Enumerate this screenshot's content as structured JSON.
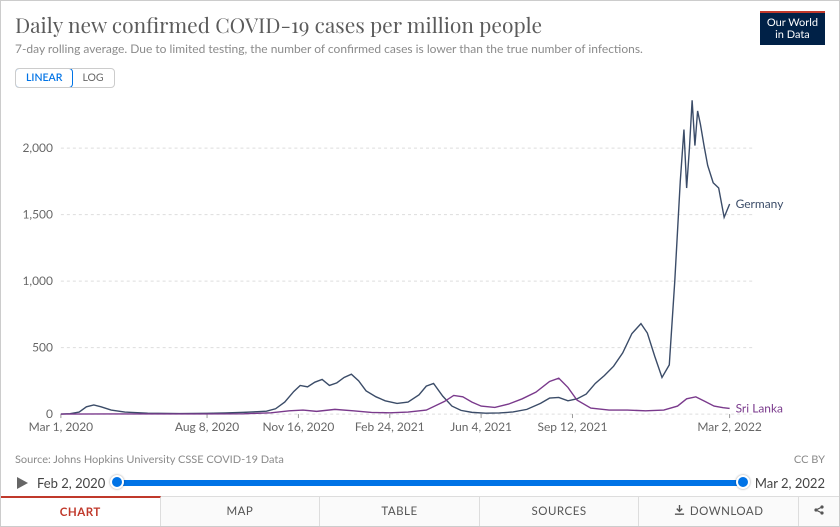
{
  "logo": {
    "line1": "Our World",
    "line2": "in Data",
    "bg": "#002147",
    "accent": "#c0392b"
  },
  "title": "Daily new confirmed COVID-19 cases per million people",
  "subtitle": "7-day rolling average. Due to limited testing, the number of confirmed cases is lower than the true number of infections.",
  "scale": {
    "linear": "LINEAR",
    "log": "LOG",
    "active": "linear",
    "active_color": "#0073e6"
  },
  "chart": {
    "type": "line",
    "background": "#ffffff",
    "grid_color": "#dddddd",
    "axis_fontsize": 12,
    "ylim": [
      0,
      2400
    ],
    "yticks": [
      0,
      500,
      1000,
      1500,
      2000
    ],
    "ytick_labels": [
      "0",
      "500",
      "1,000",
      "1,500",
      "2,000"
    ],
    "xlim": [
      0,
      760
    ],
    "xticks": [
      0,
      160,
      260,
      360,
      460,
      560,
      732
    ],
    "xtick_labels": [
      "Mar 1, 2020",
      "Aug 8, 2020",
      "Nov 16, 2020",
      "Feb 24, 2021",
      "Jun 4, 2021",
      "Sep 12, 2021",
      "Mar 2, 2022"
    ],
    "series": [
      {
        "name": "Germany",
        "label": "Germany",
        "color": "#3b4c68",
        "data": [
          [
            0,
            0
          ],
          [
            10,
            3
          ],
          [
            20,
            15
          ],
          [
            28,
            55
          ],
          [
            36,
            68
          ],
          [
            44,
            55
          ],
          [
            55,
            30
          ],
          [
            70,
            15
          ],
          [
            95,
            7
          ],
          [
            130,
            4
          ],
          [
            160,
            5
          ],
          [
            180,
            8
          ],
          [
            200,
            13
          ],
          [
            215,
            18
          ],
          [
            225,
            22
          ],
          [
            235,
            40
          ],
          [
            245,
            90
          ],
          [
            255,
            170
          ],
          [
            262,
            215
          ],
          [
            270,
            205
          ],
          [
            278,
            240
          ],
          [
            286,
            260
          ],
          [
            294,
            215
          ],
          [
            302,
            235
          ],
          [
            310,
            275
          ],
          [
            318,
            300
          ],
          [
            326,
            250
          ],
          [
            334,
            175
          ],
          [
            345,
            130
          ],
          [
            355,
            100
          ],
          [
            368,
            80
          ],
          [
            380,
            90
          ],
          [
            392,
            145
          ],
          [
            400,
            210
          ],
          [
            408,
            230
          ],
          [
            418,
            135
          ],
          [
            428,
            60
          ],
          [
            438,
            28
          ],
          [
            450,
            13
          ],
          [
            465,
            7
          ],
          [
            480,
            8
          ],
          [
            495,
            16
          ],
          [
            510,
            35
          ],
          [
            525,
            80
          ],
          [
            535,
            120
          ],
          [
            545,
            125
          ],
          [
            555,
            100
          ],
          [
            565,
            115
          ],
          [
            575,
            150
          ],
          [
            585,
            230
          ],
          [
            595,
            290
          ],
          [
            605,
            360
          ],
          [
            615,
            460
          ],
          [
            625,
            605
          ],
          [
            635,
            680
          ],
          [
            642,
            610
          ],
          [
            650,
            435
          ],
          [
            658,
            275
          ],
          [
            666,
            370
          ],
          [
            672,
            1000
          ],
          [
            678,
            1750
          ],
          [
            682,
            2140
          ],
          [
            685,
            1700
          ],
          [
            688,
            2000
          ],
          [
            691,
            2360
          ],
          [
            694,
            2020
          ],
          [
            697,
            2280
          ],
          [
            700,
            2180
          ],
          [
            704,
            2020
          ],
          [
            708,
            1870
          ],
          [
            714,
            1740
          ],
          [
            720,
            1700
          ],
          [
            726,
            1480
          ],
          [
            732,
            1580
          ]
        ]
      },
      {
        "name": "Sri Lanka",
        "label": "Sri Lanka",
        "color": "#7a3a8c",
        "data": [
          [
            0,
            0
          ],
          [
            50,
            1
          ],
          [
            100,
            1
          ],
          [
            150,
            1
          ],
          [
            200,
            2
          ],
          [
            230,
            10
          ],
          [
            250,
            25
          ],
          [
            265,
            30
          ],
          [
            280,
            20
          ],
          [
            300,
            35
          ],
          [
            320,
            25
          ],
          [
            340,
            12
          ],
          [
            360,
            10
          ],
          [
            380,
            15
          ],
          [
            400,
            30
          ],
          [
            420,
            95
          ],
          [
            430,
            140
          ],
          [
            440,
            130
          ],
          [
            450,
            90
          ],
          [
            460,
            60
          ],
          [
            475,
            50
          ],
          [
            490,
            75
          ],
          [
            505,
            115
          ],
          [
            520,
            165
          ],
          [
            535,
            245
          ],
          [
            545,
            270
          ],
          [
            555,
            200
          ],
          [
            565,
            105
          ],
          [
            580,
            45
          ],
          [
            600,
            30
          ],
          [
            620,
            30
          ],
          [
            640,
            25
          ],
          [
            660,
            30
          ],
          [
            675,
            60
          ],
          [
            685,
            115
          ],
          [
            695,
            130
          ],
          [
            705,
            95
          ],
          [
            715,
            60
          ],
          [
            725,
            48
          ],
          [
            732,
            42
          ]
        ]
      }
    ]
  },
  "source": {
    "text": "Source: Johns Hopkins University CSSE COVID-19 Data",
    "license": "CC BY"
  },
  "timeline": {
    "start_label": "Feb 2, 2020",
    "end_label": "Mar 2, 2022",
    "fill_color": "#0073e6",
    "start_pct": 2,
    "end_pct": 100
  },
  "tabs": {
    "items": [
      "CHART",
      "MAP",
      "TABLE",
      "SOURCES",
      "DOWNLOAD"
    ],
    "active": "CHART",
    "download_icon": true
  }
}
